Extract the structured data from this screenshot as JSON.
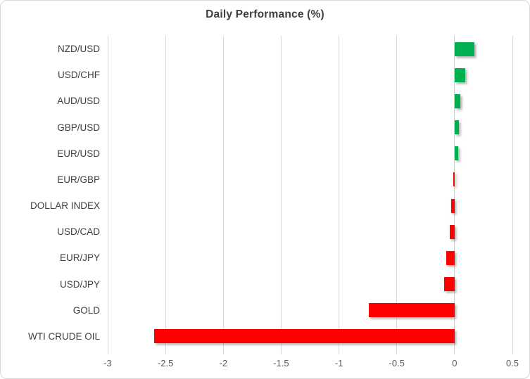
{
  "title": "Daily Performance (%)",
  "colors": {
    "positive_bar": "#00B050",
    "negative_bar": "#FF0000",
    "gridline": "#D9D9D9",
    "zero_line": "#CFCFCF",
    "title_text": "#3F3F3F",
    "category_text": "#404040",
    "tick_text": "#595959",
    "chart_border": "#D9D9D9",
    "background": "#FFFFFF"
  },
  "chart_data": {
    "type": "bar",
    "orientation": "horizontal",
    "title": "Daily Performance (%)",
    "categories": [
      "NZD/USD",
      "USD/CHF",
      "AUD/USD",
      "GBP/USD",
      "EUR/USD",
      "EUR/GBP",
      "DOLLAR INDEX",
      "USD/CAD",
      "EUR/JPY",
      "USD/JPY",
      "GOLD",
      "WTI CRUDE OIL"
    ],
    "values": [
      0.17,
      0.09,
      0.05,
      0.04,
      0.03,
      -0.01,
      -0.03,
      -0.04,
      -0.07,
      -0.09,
      -0.74,
      -2.6
    ],
    "xlabel": "",
    "ylabel": "",
    "xlim": [
      -3,
      0.5
    ],
    "xticks": [
      -3,
      -2.5,
      -2,
      -1.5,
      -1,
      -0.5,
      0,
      0.5
    ],
    "xtick_labels": [
      "-3",
      "-2.5",
      "-2",
      "-1.5",
      "-1",
      "-0.5",
      "0",
      "0.5"
    ],
    "grid": true,
    "legend": false,
    "bar_colors_rule": "green if value > 0 else red"
  }
}
